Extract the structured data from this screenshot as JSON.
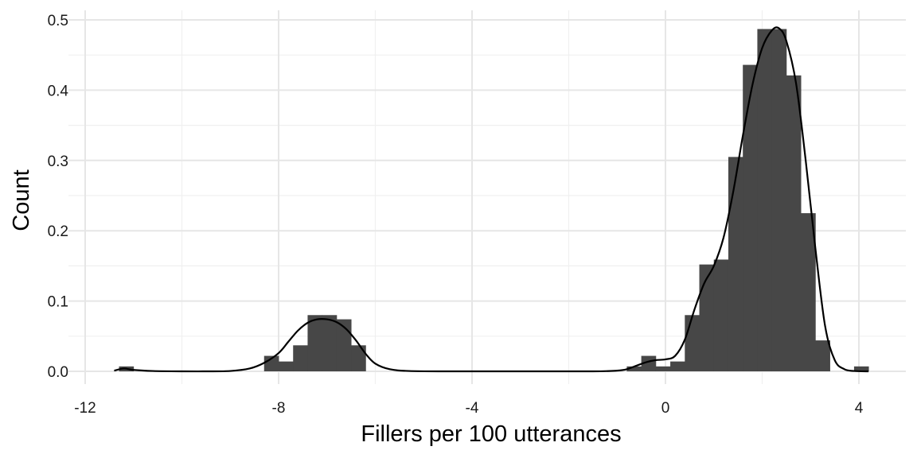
{
  "chart_data": {
    "type": "histogram",
    "xlabel": "Fillers per 100 utterances",
    "ylabel": "Count",
    "xlim": [
      -12,
      4.5
    ],
    "ylim": [
      0,
      0.5
    ],
    "x_ticks": [
      -12,
      -8,
      -4,
      0,
      4
    ],
    "x_tick_labels": [
      "-12",
      "-8",
      "-4",
      "0",
      "4"
    ],
    "y_ticks": [
      0,
      0.1,
      0.2,
      0.3,
      0.4,
      0.5
    ],
    "y_tick_labels": [
      "0.0",
      "0.1",
      "0.2",
      "0.3",
      "0.4",
      "0.5"
    ],
    "grid": true,
    "colors": {
      "bar": "#474747",
      "density": "#000000",
      "grid": "#e6e6e6"
    },
    "bins": [
      {
        "x0": -11.3,
        "x1": -11.0,
        "y": 0.007
      },
      {
        "x0": -8.3,
        "x1": -8.0,
        "y": 0.022
      },
      {
        "x0": -8.0,
        "x1": -7.7,
        "y": 0.014
      },
      {
        "x0": -7.7,
        "x1": -7.4,
        "y": 0.037
      },
      {
        "x0": -7.4,
        "x1": -7.1,
        "y": 0.08
      },
      {
        "x0": -7.1,
        "x1": -6.8,
        "y": 0.08
      },
      {
        "x0": -6.8,
        "x1": -6.5,
        "y": 0.074
      },
      {
        "x0": -6.5,
        "x1": -6.2,
        "y": 0.037
      },
      {
        "x0": -0.8,
        "x1": -0.5,
        "y": 0.007
      },
      {
        "x0": -0.5,
        "x1": -0.2,
        "y": 0.022
      },
      {
        "x0": -0.2,
        "x1": 0.1,
        "y": 0.007
      },
      {
        "x0": 0.1,
        "x1": 0.4,
        "y": 0.014
      },
      {
        "x0": 0.4,
        "x1": 0.7,
        "y": 0.08
      },
      {
        "x0": 0.7,
        "x1": 1.0,
        "y": 0.152
      },
      {
        "x0": 1.0,
        "x1": 1.3,
        "y": 0.159
      },
      {
        "x0": 1.3,
        "x1": 1.6,
        "y": 0.305
      },
      {
        "x0": 1.6,
        "x1": 1.9,
        "y": 0.436
      },
      {
        "x0": 1.9,
        "x1": 2.2,
        "y": 0.487
      },
      {
        "x0": 2.2,
        "x1": 2.5,
        "y": 0.487
      },
      {
        "x0": 2.5,
        "x1": 2.8,
        "y": 0.421
      },
      {
        "x0": 2.8,
        "x1": 3.1,
        "y": 0.225
      },
      {
        "x0": 3.1,
        "x1": 3.4,
        "y": 0.044
      },
      {
        "x0": 3.9,
        "x1": 4.2,
        "y": 0.007
      }
    ],
    "density": {
      "x": [
        -11.4,
        -11.2,
        -11.0,
        -10.6,
        -10.0,
        -9.5,
        -9.0,
        -8.6,
        -8.3,
        -8.0,
        -7.8,
        -7.6,
        -7.4,
        -7.2,
        -7.0,
        -6.8,
        -6.6,
        -6.4,
        -6.2,
        -6.0,
        -5.7,
        -5.3,
        -4.5,
        -3.0,
        -1.5,
        -1.0,
        -0.8,
        -0.6,
        -0.4,
        -0.2,
        0.0,
        0.2,
        0.4,
        0.6,
        0.8,
        1.0,
        1.2,
        1.4,
        1.6,
        1.8,
        2.0,
        2.2,
        2.35,
        2.5,
        2.7,
        2.9,
        3.1,
        3.3,
        3.5,
        3.7,
        3.9,
        4.2
      ],
      "y": [
        0.001,
        0.004,
        0.002,
        0.0005,
        0.0,
        0.0,
        0.0005,
        0.004,
        0.012,
        0.026,
        0.042,
        0.058,
        0.069,
        0.074,
        0.074,
        0.07,
        0.06,
        0.044,
        0.025,
        0.011,
        0.003,
        0.0005,
        0.0,
        0.0,
        0.0,
        0.001,
        0.003,
        0.008,
        0.013,
        0.016,
        0.017,
        0.022,
        0.045,
        0.088,
        0.125,
        0.15,
        0.19,
        0.255,
        0.335,
        0.408,
        0.46,
        0.485,
        0.488,
        0.47,
        0.41,
        0.3,
        0.175,
        0.065,
        0.016,
        0.003,
        0.0005,
        0.0
      ]
    }
  }
}
